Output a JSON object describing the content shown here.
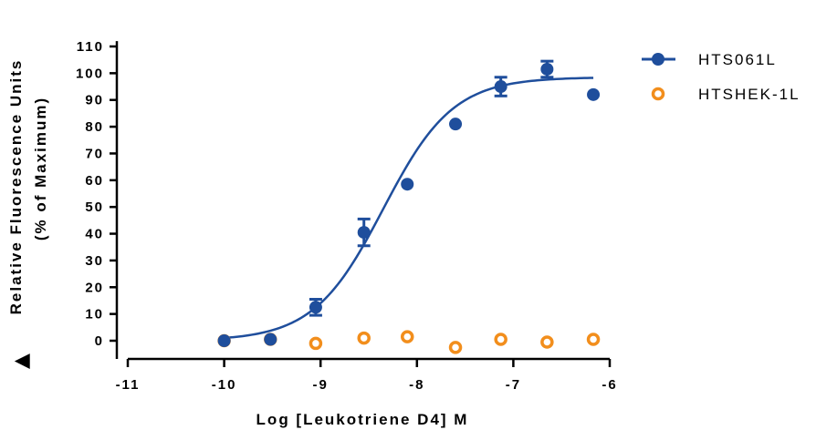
{
  "chart_data": {
    "type": "scatter",
    "title": "",
    "xlabel": "Log [Leukotriene D4] M",
    "ylabel_line1": "Relative Fluorescence Units",
    "ylabel_line2": "(% of Maximum)",
    "ylabel_marker": "▲",
    "xlim": [
      -11,
      -6
    ],
    "ylim": [
      -5,
      115
    ],
    "x_ticks": [
      -11,
      -10,
      -9,
      -8,
      -7,
      -6
    ],
    "x_tick_labels": [
      "-11",
      "-10",
      "-9",
      "-8",
      "-7",
      "-6"
    ],
    "y_ticks": [
      0,
      10,
      20,
      30,
      40,
      50,
      60,
      70,
      80,
      90,
      100,
      110
    ],
    "y_tick_labels": [
      "0",
      "10",
      "20",
      "30",
      "40",
      "50",
      "60",
      "70",
      "80",
      "90",
      "100",
      "110"
    ],
    "grid": false,
    "legend_position": "top-right",
    "series": [
      {
        "name": "HTS061L",
        "color": "#1f4e9c",
        "marker": "filled-circle",
        "line": "fitted-sigmoid",
        "points": [
          {
            "x": -10.0,
            "y": 0,
            "err": 0
          },
          {
            "x": -9.52,
            "y": 0.5,
            "err": 0
          },
          {
            "x": -9.05,
            "y": 12.5,
            "err": 3
          },
          {
            "x": -8.55,
            "y": 40.5,
            "err": 5
          },
          {
            "x": -8.1,
            "y": 58.5,
            "err": 0
          },
          {
            "x": -7.6,
            "y": 81,
            "err": 0
          },
          {
            "x": -7.13,
            "y": 95,
            "err": 3.5
          },
          {
            "x": -6.65,
            "y": 101.5,
            "err": 3
          },
          {
            "x": -6.17,
            "y": 92,
            "err": 0
          }
        ],
        "fit": {
          "bottom": 0,
          "top": 98.5,
          "logEC50": -8.35,
          "hill": 1.2,
          "x_range": [
            -10.0,
            -6.17
          ]
        }
      },
      {
        "name": "HTSHEK-1L",
        "color": "#f28e1c",
        "marker": "open-circle",
        "line": "none",
        "points": [
          {
            "x": -10.0,
            "y": 0
          },
          {
            "x": -9.52,
            "y": 0.5
          },
          {
            "x": -9.05,
            "y": -1
          },
          {
            "x": -8.55,
            "y": 1
          },
          {
            "x": -8.1,
            "y": 1.5
          },
          {
            "x": -7.6,
            "y": -2.5
          },
          {
            "x": -7.13,
            "y": 0.5
          },
          {
            "x": -6.65,
            "y": -0.5
          },
          {
            "x": -6.17,
            "y": 0.5
          }
        ]
      }
    ]
  }
}
